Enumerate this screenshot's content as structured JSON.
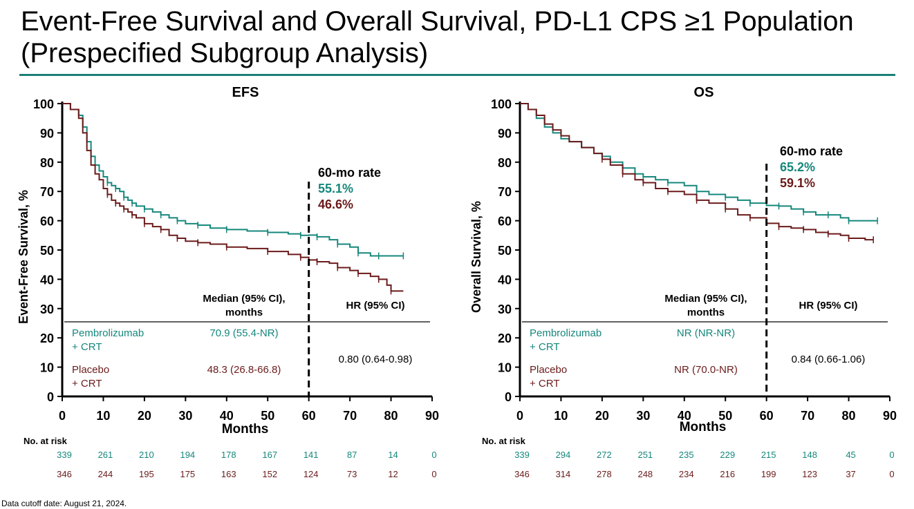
{
  "title": "Event-Free Survival and Overall Survival, PD-L1 CPS ≥1 Population (Prespecified Subgroup Analysis)",
  "footnote": "Data cutoff date: August 21, 2024.",
  "colors": {
    "pembro": "#15877c",
    "placebo": "#6b1a1a",
    "rule": "#1a7f76"
  },
  "chart_data": [
    {
      "type": "line",
      "title": "EFS",
      "xlabel": "Months",
      "ylabel": "Event-Free Survival, %",
      "xlim": [
        0,
        90
      ],
      "ylim": [
        0,
        100
      ],
      "xticks": [
        "0",
        "10",
        "20",
        "30",
        "40",
        "50",
        "60",
        "70",
        "80",
        "90"
      ],
      "yticks": [
        "0",
        "10",
        "20",
        "30",
        "40",
        "50",
        "60",
        "70",
        "80",
        "90",
        "100"
      ],
      "landmark_month": 60,
      "rate_label": "60-mo rate",
      "rates": [
        "55.1%",
        "46.6%"
      ],
      "table": {
        "median_header": "Median (95% CI), months",
        "hr_header": "HR (95% CI)",
        "rows": [
          {
            "name_line1": "Pembrolizumab",
            "name_line2": "+ CRT",
            "median": "70.9 (55.4-NR)"
          },
          {
            "name_line1": "Placebo",
            "name_line2": "+ CRT",
            "median": "48.3 (26.8-66.8)"
          }
        ],
        "hr": "0.80 (0.64-0.98)"
      },
      "risk_header": "No. at risk",
      "risk_times": [
        0,
        10,
        20,
        30,
        40,
        50,
        60,
        70,
        80,
        90
      ],
      "series": [
        {
          "name": "Pembrolizumab + CRT",
          "x": [
            0,
            2,
            4,
            5,
            6,
            7,
            8,
            9,
            10,
            11,
            12,
            13,
            14,
            15,
            16,
            17,
            18,
            20,
            22,
            24,
            26,
            28,
            30,
            33,
            36,
            40,
            45,
            50,
            55,
            58,
            60,
            62,
            65,
            67,
            70,
            72,
            75,
            77,
            80,
            83
          ],
          "y": [
            100,
            98,
            96,
            92,
            87,
            82,
            79,
            77,
            75,
            73,
            72,
            71,
            70,
            68,
            67,
            66,
            65,
            64,
            63,
            62,
            61,
            60,
            59,
            58.5,
            57.5,
            57,
            56.5,
            56,
            55.5,
            55,
            55.1,
            54.5,
            53.5,
            52,
            51,
            49,
            48,
            48,
            48,
            48
          ],
          "at_risk": [
            "339",
            "261",
            "210",
            "194",
            "178",
            "167",
            "141",
            "87",
            "14",
            "0"
          ]
        },
        {
          "name": "Placebo + CRT",
          "x": [
            0,
            2,
            4,
            5,
            6,
            7,
            8,
            9,
            10,
            11,
            12,
            13,
            14,
            15,
            16,
            17,
            18,
            20,
            22,
            24,
            26,
            28,
            30,
            33,
            36,
            40,
            45,
            50,
            55,
            58,
            60,
            62,
            65,
            67,
            70,
            72,
            75,
            77,
            79,
            80,
            83
          ],
          "y": [
            100,
            98,
            95,
            90,
            84,
            79,
            76,
            74,
            71,
            69,
            67,
            66,
            65,
            64,
            63,
            62,
            61,
            59,
            58,
            57,
            55,
            54,
            53,
            52.5,
            52,
            51,
            50.5,
            49.5,
            48.5,
            47.5,
            46.6,
            46,
            45.5,
            44,
            43,
            42,
            41,
            40,
            38,
            36,
            36
          ],
          "at_risk": [
            "346",
            "244",
            "195",
            "175",
            "163",
            "152",
            "124",
            "73",
            "12",
            "0"
          ]
        }
      ]
    },
    {
      "type": "line",
      "title": "OS",
      "xlabel": "Months",
      "ylabel": "Overall Survival, %",
      "xlim": [
        0,
        90
      ],
      "ylim": [
        0,
        100
      ],
      "xticks": [
        "0",
        "10",
        "20",
        "30",
        "40",
        "50",
        "60",
        "70",
        "80",
        "90"
      ],
      "yticks": [
        "0",
        "10",
        "20",
        "30",
        "40",
        "50",
        "60",
        "70",
        "80",
        "90",
        "100"
      ],
      "landmark_month": 60,
      "rate_label": "60-mo rate",
      "rates": [
        "65.2%",
        "59.1%"
      ],
      "table": {
        "median_header": "Median (95% CI), months",
        "hr_header": "HR (95% CI)",
        "rows": [
          {
            "name_line1": "Pembrolizumab",
            "name_line2": "+ CRT",
            "median": "NR (NR-NR)"
          },
          {
            "name_line1": "Placebo",
            "name_line2": "+ CRT",
            "median": "NR (70.0-NR)"
          }
        ],
        "hr": "0.84 (0.66-1.06)"
      },
      "risk_header": "No. at risk",
      "risk_times": [
        0,
        10,
        20,
        30,
        40,
        50,
        60,
        70,
        80,
        90
      ],
      "series": [
        {
          "name": "Pembrolizumab + CRT",
          "x": [
            0,
            2,
            4,
            6,
            8,
            10,
            12,
            15,
            18,
            20,
            22,
            25,
            28,
            30,
            33,
            36,
            40,
            43,
            46,
            50,
            53,
            56,
            60,
            63,
            66,
            69,
            72,
            75,
            78,
            80,
            84,
            87
          ],
          "y": [
            100,
            98,
            95,
            92,
            90,
            88,
            87,
            85,
            83,
            82,
            80,
            78,
            76,
            75,
            74,
            73,
            72,
            70,
            69,
            68,
            67,
            66,
            65.2,
            65,
            64,
            63,
            62,
            62,
            61,
            60,
            60,
            60
          ],
          "at_risk": [
            "339",
            "294",
            "272",
            "251",
            "235",
            "229",
            "215",
            "148",
            "45",
            "0"
          ]
        },
        {
          "name": "Placebo + CRT",
          "x": [
            0,
            2,
            4,
            6,
            8,
            10,
            12,
            15,
            18,
            20,
            22,
            25,
            28,
            30,
            33,
            36,
            40,
            43,
            46,
            50,
            53,
            56,
            60,
            63,
            66,
            69,
            72,
            75,
            78,
            80,
            84,
            86
          ],
          "y": [
            100,
            98,
            96,
            93,
            91,
            89,
            87,
            85,
            83,
            81,
            79,
            76,
            74,
            73,
            71,
            70,
            69,
            67,
            66,
            64,
            62,
            61,
            59.1,
            58,
            57.5,
            57,
            56,
            55.5,
            55,
            54,
            53.5,
            53.5
          ],
          "at_risk": [
            "346",
            "314",
            "278",
            "248",
            "234",
            "216",
            "199",
            "123",
            "37",
            "0"
          ]
        }
      ]
    }
  ]
}
